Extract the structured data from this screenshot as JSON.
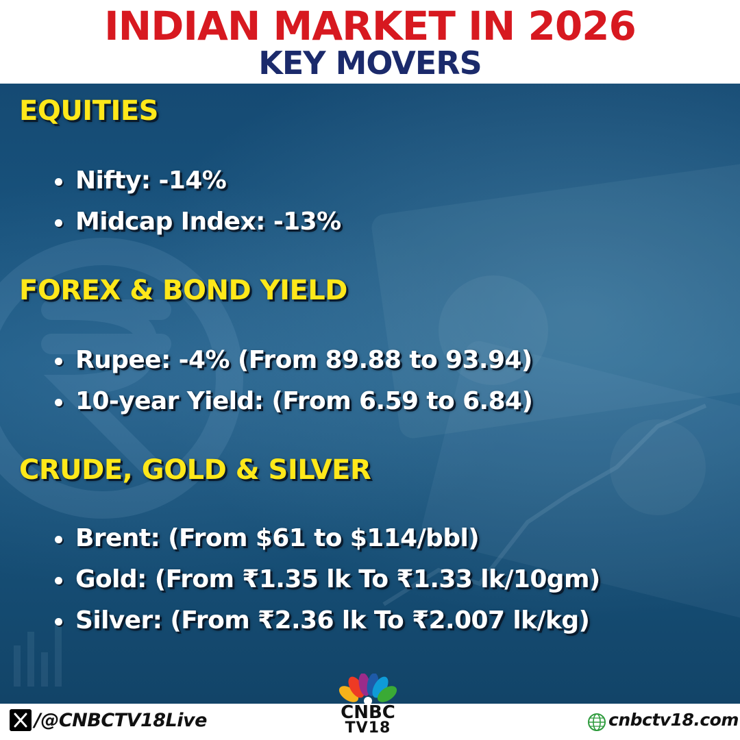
{
  "header": {
    "title": "INDIAN MARKET IN 2026",
    "subtitle": "KEY MOVERS"
  },
  "sections": [
    {
      "title": "EQUITIES",
      "items": [
        "Nifty: -14%",
        "Midcap Index: -13%"
      ]
    },
    {
      "title": "FOREX & BOND YIELD",
      "items": [
        "Rupee: -4% (From 89.88 to 93.94)",
        "10-year Yield: (From 6.59 to 6.84)"
      ]
    },
    {
      "title": "CRUDE, GOLD & SILVER",
      "items": [
        "Brent: (From $61 to $114/bbl)",
        "Gold: (From ₹1.35 lk To ₹1.33 lk/10gm)",
        "Silver: (From ₹2.36 lk To ₹2.007 lk/kg)"
      ]
    }
  ],
  "footer": {
    "social_handle": "/@CNBCTV18Live",
    "logo_line1": "CNBC",
    "logo_line2": "TV18",
    "website": "cnbctv18.com",
    "social_icon": "x-logo-icon",
    "web_icon": "www-globe-icon"
  },
  "colors": {
    "title_red": "#d71920",
    "subtitle_navy": "#1b2a6b",
    "section_yellow": "#ffe81a",
    "panel_blue": "#1b5a85",
    "text_white": "#ffffff"
  }
}
